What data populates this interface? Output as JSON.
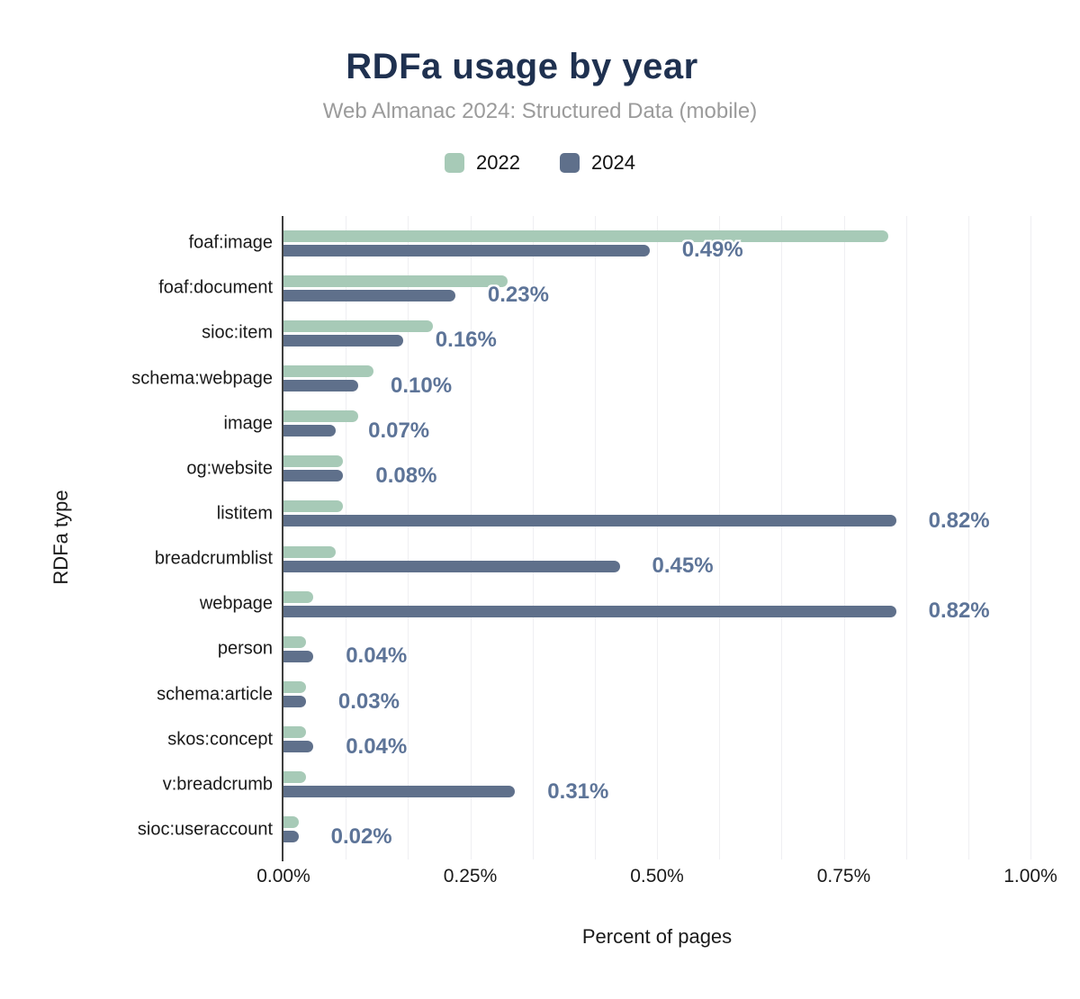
{
  "title": "RDFa usage by year",
  "subtitle": "Web Almanac 2024: Structured Data (mobile)",
  "colors": {
    "title": "#1f3150",
    "subtitle": "#9b9b9b",
    "series_2022": "#a7cab7",
    "series_2024": "#5f708b",
    "value_label": "#5d7498",
    "gridline": "#efeff2",
    "axis_line": "#3f3f3f"
  },
  "chart_data": {
    "type": "bar",
    "orientation": "horizontal",
    "title": "RDFa usage by year",
    "subtitle": "Web Almanac 2024: Structured Data (mobile)",
    "xlabel": "Percent of pages",
    "ylabel": "RDFa type",
    "xlim": [
      0,
      1.0
    ],
    "x_tick_labels": [
      "0.00%",
      "0.25%",
      "0.50%",
      "0.75%",
      "1.00%"
    ],
    "x_tick_values": [
      0,
      0.25,
      0.5,
      0.75,
      1.0
    ],
    "grid_intervals": 12,
    "legend_position": "top",
    "categories": [
      "foaf:image",
      "foaf:document",
      "sioc:item",
      "schema:webpage",
      "image",
      "og:website",
      "listitem",
      "breadcrumblist",
      "webpage",
      "person",
      "schema:article",
      "skos:concept",
      "v:breadcrumb",
      "sioc:useraccount"
    ],
    "series": [
      {
        "name": "2022",
        "color": "#a7cab7",
        "values": [
          0.81,
          0.3,
          0.2,
          0.12,
          0.1,
          0.08,
          0.08,
          0.07,
          0.04,
          0.03,
          0.03,
          0.03,
          0.03,
          0.02
        ]
      },
      {
        "name": "2024",
        "color": "#5f708b",
        "values": [
          0.49,
          0.23,
          0.16,
          0.1,
          0.07,
          0.08,
          0.82,
          0.45,
          0.82,
          0.04,
          0.03,
          0.04,
          0.31,
          0.02
        ],
        "labels": [
          "0.49%",
          "0.23%",
          "0.16%",
          "0.10%",
          "0.07%",
          "0.08%",
          "0.82%",
          "0.45%",
          "0.82%",
          "0.04%",
          "0.03%",
          "0.04%",
          "0.31%",
          "0.02%"
        ]
      }
    ]
  }
}
